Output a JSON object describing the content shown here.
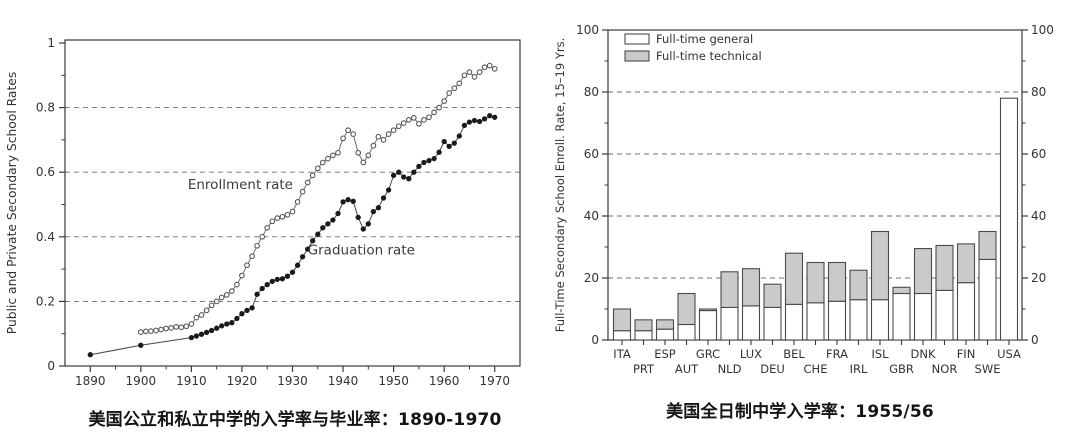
{
  "page": {
    "background": "#ffffff"
  },
  "colors": {
    "axis": "#3a3a3a",
    "grid": "#6e6e6e",
    "text": "#333333",
    "enrollment_line": "#6f6f6f",
    "graduation_line": "#474747",
    "marker_fill_open": "#ffffff",
    "marker_fill_solid": "#1a1a1a",
    "bar_general_fill": "#ffffff",
    "bar_technical_fill": "#cacaca",
    "bar_stroke": "#4a4a4a"
  },
  "chart_data": [
    {
      "type": "line",
      "caption": "美国公立和私立中学的入学率与毕业率：1890-1970",
      "xlabel": "",
      "ylabel": "Public and Private Secondary School Rates",
      "xlim": [
        1885,
        1975
      ],
      "ylim": [
        0,
        1
      ],
      "xticks": [
        1890,
        1900,
        1910,
        1920,
        1930,
        1940,
        1950,
        1960,
        1970
      ],
      "xminor": [
        1895,
        1905,
        1915,
        1925,
        1935,
        1945,
        1955,
        1965
      ],
      "yticks": [
        0,
        0.2,
        0.4,
        0.6,
        0.8,
        1
      ],
      "yminor": [
        0.1,
        0.3,
        0.5,
        0.7,
        0.9
      ],
      "grid": "horizontal dashed at 0.2, 0.4, 0.6, 0.8",
      "legend_position": "inline labels next to curves",
      "series": [
        {
          "name": "Enrollment rate",
          "marker": "open-circle",
          "label_anchor": [
            1909.3,
            0.548
          ],
          "points": [
            [
              1900,
              0.105
            ],
            [
              1901,
              0.107
            ],
            [
              1902,
              0.108
            ],
            [
              1903,
              0.11
            ],
            [
              1904,
              0.113
            ],
            [
              1905,
              0.116
            ],
            [
              1906,
              0.118
            ],
            [
              1907,
              0.121
            ],
            [
              1908,
              0.12
            ],
            [
              1909,
              0.123
            ],
            [
              1910,
              0.13
            ],
            [
              1911,
              0.15
            ],
            [
              1912,
              0.158
            ],
            [
              1913,
              0.172
            ],
            [
              1914,
              0.188
            ],
            [
              1915,
              0.2
            ],
            [
              1916,
              0.212
            ],
            [
              1917,
              0.22
            ],
            [
              1918,
              0.232
            ],
            [
              1919,
              0.252
            ],
            [
              1920,
              0.28
            ],
            [
              1921,
              0.312
            ],
            [
              1922,
              0.34
            ],
            [
              1923,
              0.372
            ],
            [
              1924,
              0.4
            ],
            [
              1925,
              0.428
            ],
            [
              1926,
              0.448
            ],
            [
              1927,
              0.458
            ],
            [
              1928,
              0.462
            ],
            [
              1929,
              0.468
            ],
            [
              1930,
              0.478
            ],
            [
              1931,
              0.508
            ],
            [
              1932,
              0.54
            ],
            [
              1933,
              0.568
            ],
            [
              1934,
              0.59
            ],
            [
              1935,
              0.612
            ],
            [
              1936,
              0.63
            ],
            [
              1937,
              0.642
            ],
            [
              1938,
              0.652
            ],
            [
              1939,
              0.66
            ],
            [
              1940,
              0.705
            ],
            [
              1941,
              0.73
            ],
            [
              1942,
              0.718
            ],
            [
              1943,
              0.66
            ],
            [
              1944,
              0.63
            ],
            [
              1945,
              0.652
            ],
            [
              1946,
              0.682
            ],
            [
              1947,
              0.71
            ],
            [
              1948,
              0.7
            ],
            [
              1949,
              0.718
            ],
            [
              1950,
              0.73
            ],
            [
              1951,
              0.742
            ],
            [
              1952,
              0.752
            ],
            [
              1953,
              0.762
            ],
            [
              1954,
              0.768
            ],
            [
              1955,
              0.75
            ],
            [
              1956,
              0.762
            ],
            [
              1957,
              0.77
            ],
            [
              1958,
              0.785
            ],
            [
              1959,
              0.8
            ],
            [
              1960,
              0.82
            ],
            [
              1961,
              0.845
            ],
            [
              1962,
              0.86
            ],
            [
              1963,
              0.875
            ],
            [
              1964,
              0.9
            ],
            [
              1965,
              0.91
            ],
            [
              1966,
              0.895
            ],
            [
              1967,
              0.91
            ],
            [
              1968,
              0.925
            ],
            [
              1969,
              0.93
            ],
            [
              1970,
              0.92
            ]
          ]
        },
        {
          "name": "Graduation rate",
          "marker": "filled-circle",
          "label_anchor": [
            1933,
            0.345
          ],
          "points": [
            [
              1890,
              0.035
            ],
            [
              1900,
              0.064
            ],
            [
              1910,
              0.088
            ],
            [
              1911,
              0.093
            ],
            [
              1912,
              0.098
            ],
            [
              1913,
              0.104
            ],
            [
              1914,
              0.11
            ],
            [
              1915,
              0.117
            ],
            [
              1916,
              0.124
            ],
            [
              1917,
              0.13
            ],
            [
              1918,
              0.134
            ],
            [
              1919,
              0.147
            ],
            [
              1920,
              0.162
            ],
            [
              1921,
              0.172
            ],
            [
              1922,
              0.18
            ],
            [
              1923,
              0.222
            ],
            [
              1924,
              0.24
            ],
            [
              1925,
              0.252
            ],
            [
              1926,
              0.262
            ],
            [
              1927,
              0.268
            ],
            [
              1928,
              0.27
            ],
            [
              1929,
              0.278
            ],
            [
              1930,
              0.29
            ],
            [
              1931,
              0.312
            ],
            [
              1932,
              0.338
            ],
            [
              1933,
              0.362
            ],
            [
              1934,
              0.388
            ],
            [
              1935,
              0.408
            ],
            [
              1936,
              0.428
            ],
            [
              1937,
              0.44
            ],
            [
              1938,
              0.452
            ],
            [
              1939,
              0.472
            ],
            [
              1940,
              0.508
            ],
            [
              1941,
              0.515
            ],
            [
              1942,
              0.51
            ],
            [
              1943,
              0.46
            ],
            [
              1944,
              0.424
            ],
            [
              1945,
              0.44
            ],
            [
              1946,
              0.478
            ],
            [
              1947,
              0.49
            ],
            [
              1948,
              0.52
            ],
            [
              1949,
              0.545
            ],
            [
              1950,
              0.59
            ],
            [
              1951,
              0.6
            ],
            [
              1952,
              0.585
            ],
            [
              1953,
              0.58
            ],
            [
              1954,
              0.6
            ],
            [
              1955,
              0.618
            ],
            [
              1956,
              0.63
            ],
            [
              1957,
              0.636
            ],
            [
              1958,
              0.642
            ],
            [
              1959,
              0.662
            ],
            [
              1960,
              0.695
            ],
            [
              1961,
              0.68
            ],
            [
              1962,
              0.69
            ],
            [
              1963,
              0.712
            ],
            [
              1964,
              0.745
            ],
            [
              1965,
              0.755
            ],
            [
              1966,
              0.76
            ],
            [
              1967,
              0.757
            ],
            [
              1968,
              0.765
            ],
            [
              1969,
              0.775
            ],
            [
              1970,
              0.77
            ]
          ]
        }
      ]
    },
    {
      "type": "bar",
      "subtype": "stacked",
      "caption": "美国全日制中学入学率：1955/56",
      "xlabel": "",
      "ylabel": "Full-Time Secondary School Enroll. Rate, 15–19 Yrs.",
      "ylim": [
        0,
        100
      ],
      "yticks": [
        0,
        20,
        40,
        60,
        80,
        100
      ],
      "yminor": [
        10,
        30,
        50,
        70,
        90
      ],
      "grid": "horizontal dashed at 20, 40, 60, 80",
      "legend_position": "top-left inside plot",
      "legend": [
        "Full-time general",
        "Full-time technical"
      ],
      "categories": [
        "ITA",
        "PRT",
        "ESP",
        "AUT",
        "GRC",
        "NLD",
        "LUX",
        "DEU",
        "BEL",
        "CHE",
        "FRA",
        "IRL",
        "ISL",
        "GBR",
        "DNK",
        "NOR",
        "FIN",
        "SWE",
        "USA"
      ],
      "series": [
        {
          "name": "Full-time general",
          "values": [
            3,
            3,
            3.5,
            5,
            9.5,
            10.5,
            11,
            10.5,
            11.5,
            12,
            12.5,
            13,
            13,
            15,
            15,
            16,
            18.5,
            26,
            78
          ]
        },
        {
          "name": "Full-time technical",
          "values": [
            7,
            3.5,
            3,
            10,
            0.5,
            11.5,
            12,
            7.5,
            16.5,
            13,
            12.5,
            9.5,
            22,
            2,
            14.5,
            14.5,
            12.5,
            9,
            0
          ]
        }
      ]
    }
  ]
}
